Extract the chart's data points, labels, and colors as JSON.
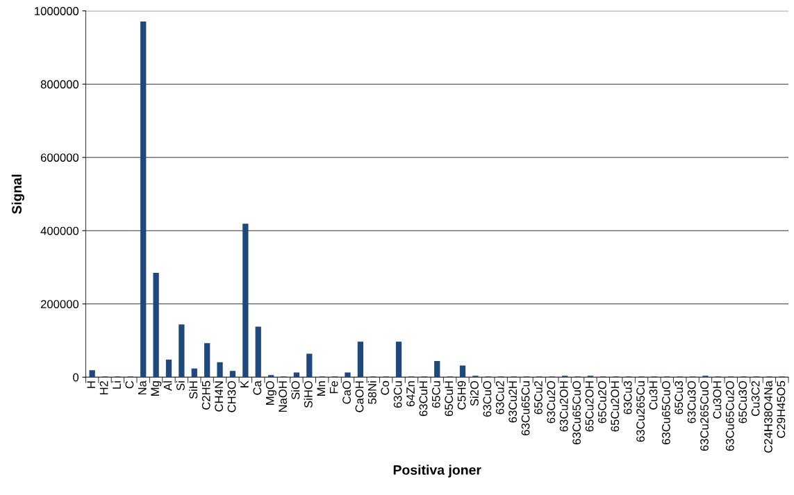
{
  "chart_data": {
    "type": "bar",
    "xlabel": "Positiva joner",
    "ylabel": "Signal",
    "categories": [
      "H",
      "H2",
      "Li",
      "C",
      "Na",
      "Mg",
      "Al",
      "Si",
      "SiH",
      "C2H5",
      "CH4N",
      "CH3O",
      "K",
      "Ca",
      "MgO",
      "NaOH",
      "SiO",
      "SiHO",
      "Mn",
      "Fe",
      "CaO",
      "CaOH",
      "58Ni",
      "Co",
      "63Cu",
      "64Zn",
      "63CuH",
      "65Cu",
      "65CuH",
      "C5H9",
      "Si2O",
      "63CuO",
      "63Cu2",
      "63Cu2H",
      "63Cu65Cu",
      "65Cu2",
      "63Cu2O",
      "63Cu2OH",
      "63Cu65CuO",
      "65Cu2OH",
      "65Cu2O",
      "65Cu2OH",
      "63Cu3",
      "63Cu265Cu",
      "Cu3H",
      "63Cu65CuO",
      "65Cu3",
      "63Cu3O",
      "63Cu265CuO",
      "Cu3OH",
      "63Cu65Cu2O",
      "65Cu3O",
      "Cu3C2",
      "C24H38O4Na",
      "C29H45O5"
    ],
    "values": [
      19000,
      2000,
      2000,
      2000,
      971000,
      285000,
      48000,
      144000,
      24000,
      93000,
      41000,
      17000,
      419000,
      138000,
      6000,
      2000,
      13000,
      64000,
      2000,
      2000,
      13000,
      97000,
      2000,
      2000,
      97000,
      2000,
      2000,
      44000,
      2000,
      32000,
      4000,
      2000,
      2000,
      2000,
      2000,
      2000,
      2000,
      4000,
      2000,
      4000,
      2000,
      2000,
      2000,
      2000,
      2000,
      2000,
      2000,
      2000,
      4000,
      2000,
      2000,
      2000,
      2000,
      2000,
      2000
    ],
    "color": "#1f497d",
    "ylim": [
      0,
      1000000
    ],
    "yticks": [
      0,
      200000,
      400000,
      600000,
      800000,
      1000000
    ],
    "grid": "y",
    "legend": false
  }
}
